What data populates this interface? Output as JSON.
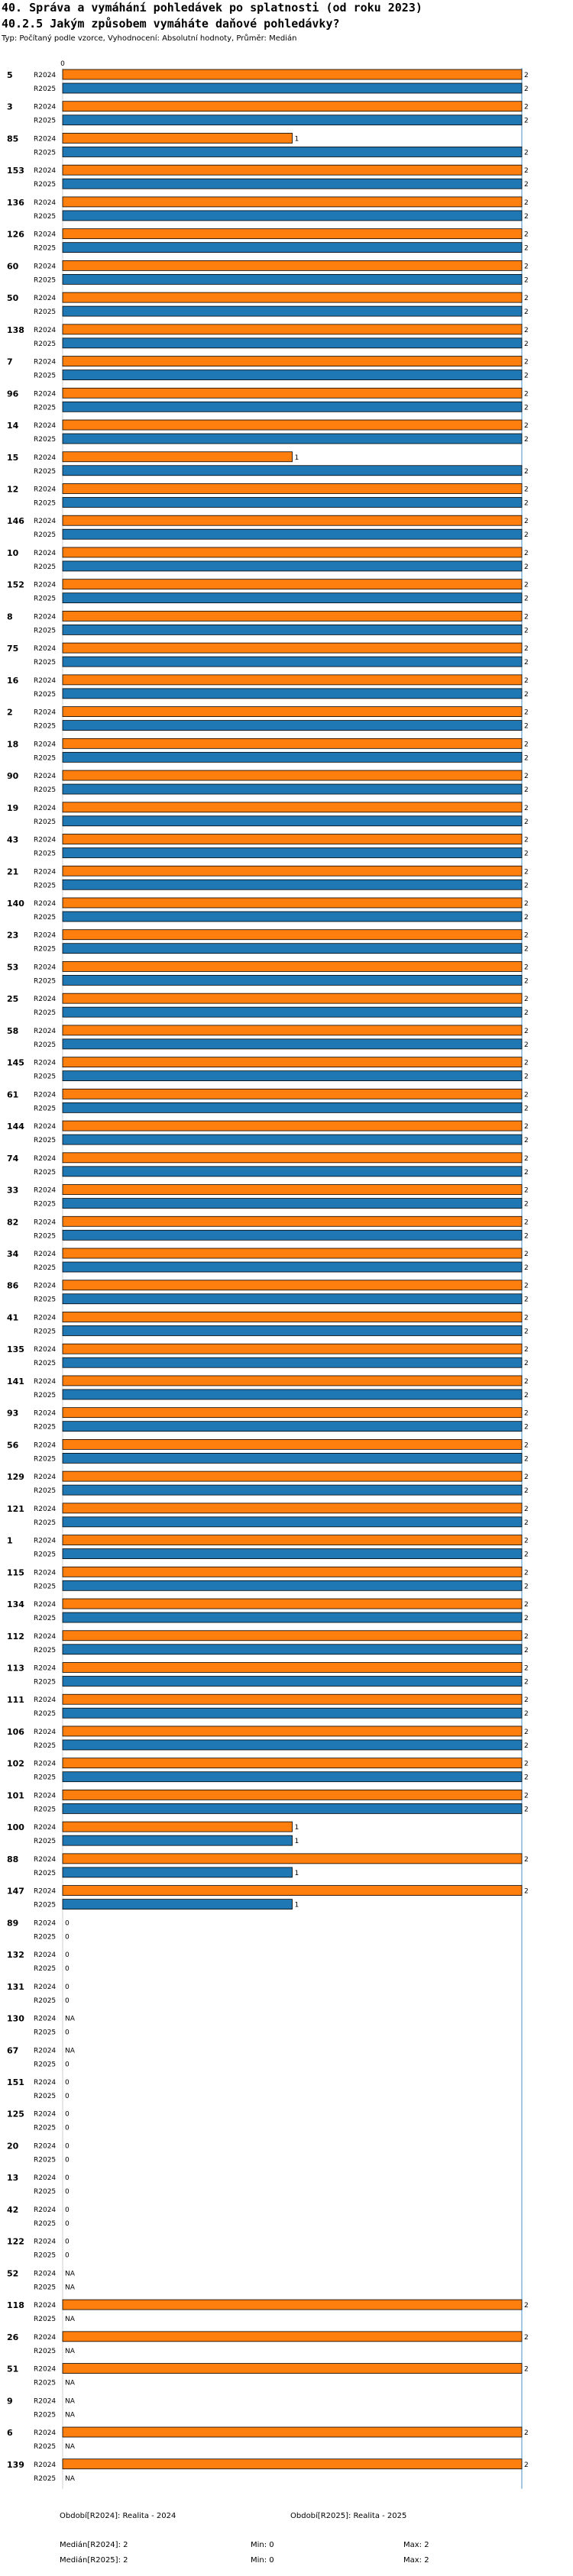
{
  "title": "40. Správa a vymáhání pohledávek po splatnosti (od roku 2023)",
  "question": "40.2.5 Jakým způsobem vymáháte daňové pohledávky?",
  "subtitle": "Typ: Počítaný podle vzorce, Vyhodnocení: Absolutní hodnoty, Průměr: Medián",
  "colors": {
    "R2024": "#ff7f0e",
    "R2025": "#1f77b4",
    "axis": "#4a90c8"
  },
  "chart_data": {
    "type": "bar",
    "orientation": "horizontal",
    "axis_tick_label": "0",
    "xlim": [
      0,
      2
    ],
    "grid": false,
    "series_labels": [
      "R2024",
      "R2025"
    ],
    "categories": [
      "5",
      "3",
      "85",
      "153",
      "136",
      "126",
      "60",
      "50",
      "138",
      "7",
      "96",
      "14",
      "15",
      "12",
      "146",
      "10",
      "152",
      "8",
      "75",
      "16",
      "2",
      "18",
      "90",
      "19",
      "43",
      "21",
      "140",
      "23",
      "53",
      "25",
      "58",
      "145",
      "61",
      "144",
      "74",
      "33",
      "82",
      "34",
      "86",
      "41",
      "135",
      "141",
      "93",
      "56",
      "129",
      "121",
      "1",
      "115",
      "134",
      "112",
      "113",
      "111",
      "106",
      "102",
      "101",
      "100",
      "88",
      "147",
      "89",
      "132",
      "131",
      "130",
      "67",
      "151",
      "125",
      "20",
      "13",
      "42",
      "122",
      "52",
      "118",
      "26",
      "51",
      "9",
      "6",
      "139"
    ],
    "series": [
      {
        "name": "R2024",
        "values": [
          2,
          2,
          1,
          2,
          2,
          2,
          2,
          2,
          2,
          2,
          2,
          2,
          1,
          2,
          2,
          2,
          2,
          2,
          2,
          2,
          2,
          2,
          2,
          2,
          2,
          2,
          2,
          2,
          2,
          2,
          2,
          2,
          2,
          2,
          2,
          2,
          2,
          2,
          2,
          2,
          2,
          2,
          2,
          2,
          2,
          2,
          2,
          2,
          2,
          2,
          2,
          2,
          2,
          2,
          2,
          1,
          2,
          2,
          0,
          0,
          0,
          "NA",
          "NA",
          0,
          0,
          0,
          0,
          0,
          0,
          "NA",
          2,
          2,
          2,
          "NA",
          2,
          2
        ]
      },
      {
        "name": "R2025",
        "values": [
          2,
          2,
          2,
          2,
          2,
          2,
          2,
          2,
          2,
          2,
          2,
          2,
          2,
          2,
          2,
          2,
          2,
          2,
          2,
          2,
          2,
          2,
          2,
          2,
          2,
          2,
          2,
          2,
          2,
          2,
          2,
          2,
          2,
          2,
          2,
          2,
          2,
          2,
          2,
          2,
          2,
          2,
          2,
          2,
          2,
          2,
          2,
          2,
          2,
          2,
          2,
          2,
          2,
          2,
          2,
          1,
          1,
          1,
          0,
          0,
          0,
          0,
          0,
          0,
          0,
          0,
          0,
          0,
          0,
          "NA",
          "NA",
          "NA",
          "NA",
          "NA",
          "NA",
          "NA"
        ]
      }
    ]
  },
  "legend": [
    {
      "label": "Období[R2024]: Realita - 2024"
    },
    {
      "label": "Období[R2025]: Realita - 2025"
    }
  ],
  "stats": {
    "r2024": {
      "median": "Medián[R2024]: 2",
      "min": "Min: 0",
      "max": "Max: 2"
    },
    "r2025": {
      "median": "Medián[R2025]: 2",
      "min": "Min: 0",
      "max": "Max: 2"
    }
  }
}
